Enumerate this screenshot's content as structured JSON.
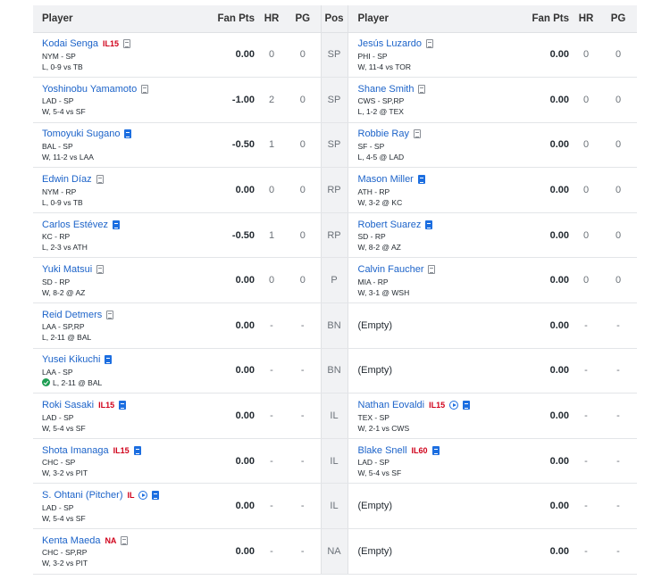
{
  "headers": {
    "player": "Player",
    "fan_pts": "Fan Pts",
    "hr": "HR",
    "pg": "PG",
    "pos": "Pos"
  },
  "rows": [
    {
      "pos": "SP",
      "left": {
        "name": "Kodai Senga",
        "status": "IL15",
        "note": "plain",
        "team": "NYM - SP",
        "game": "L, 0-9 vs TB",
        "pts": "0.00",
        "hr": "0",
        "pg": "0"
      },
      "right": {
        "name": "Jesús Luzardo",
        "note": "plain",
        "team": "PHI - SP",
        "game": "W, 11-4 vs TOR",
        "pts": "0.00",
        "hr": "0",
        "pg": "0"
      }
    },
    {
      "pos": "SP",
      "left": {
        "name": "Yoshinobu Yamamoto",
        "note": "plain",
        "team": "LAD - SP",
        "game": "W, 5-4 vs SF",
        "pts": "-1.00",
        "hr": "2",
        "pg": "0"
      },
      "right": {
        "name": "Shane Smith",
        "note": "plain",
        "team": "CWS - SP,RP",
        "game": "L, 1-2 @ TEX",
        "pts": "0.00",
        "hr": "0",
        "pg": "0"
      }
    },
    {
      "pos": "SP",
      "left": {
        "name": "Tomoyuki Sugano",
        "note": "news",
        "team": "BAL - SP",
        "game": "W, 11-2 vs LAA",
        "pts": "-0.50",
        "hr": "1",
        "pg": "0"
      },
      "right": {
        "name": "Robbie Ray",
        "note": "plain",
        "team": "SF - SP",
        "game": "L, 4-5 @ LAD",
        "pts": "0.00",
        "hr": "0",
        "pg": "0"
      }
    },
    {
      "pos": "RP",
      "left": {
        "name": "Edwin Díaz",
        "note": "plain",
        "team": "NYM - RP",
        "game": "L, 0-9 vs TB",
        "pts": "0.00",
        "hr": "0",
        "pg": "0"
      },
      "right": {
        "name": "Mason Miller",
        "note": "news",
        "team": "ATH - RP",
        "game": "W, 3-2 @ KC",
        "pts": "0.00",
        "hr": "0",
        "pg": "0"
      }
    },
    {
      "pos": "RP",
      "left": {
        "name": "Carlos Estévez",
        "note": "news",
        "team": "KC - RP",
        "game": "L, 2-3 vs ATH",
        "pts": "-0.50",
        "hr": "1",
        "pg": "0"
      },
      "right": {
        "name": "Robert Suarez",
        "note": "news",
        "team": "SD - RP",
        "game": "W, 8-2 @ AZ",
        "pts": "0.00",
        "hr": "0",
        "pg": "0"
      }
    },
    {
      "pos": "P",
      "left": {
        "name": "Yuki Matsui",
        "note": "plain",
        "team": "SD - RP",
        "game": "W, 8-2 @ AZ",
        "pts": "0.00",
        "hr": "0",
        "pg": "0"
      },
      "right": {
        "name": "Calvin Faucher",
        "note": "plain",
        "team": "MIA - RP",
        "game": "W, 3-1 @ WSH",
        "pts": "0.00",
        "hr": "0",
        "pg": "0"
      }
    },
    {
      "pos": "BN",
      "left": {
        "name": "Reid Detmers",
        "note": "plain",
        "team": "LAA - SP,RP",
        "game": "L, 2-11 @ BAL",
        "pts": "0.00",
        "hr": "-",
        "pg": "-"
      },
      "right": {
        "empty": "(Empty)",
        "pts": "0.00",
        "hr": "-",
        "pg": "-"
      }
    },
    {
      "pos": "BN",
      "left": {
        "name": "Yusei Kikuchi",
        "note": "news",
        "team": "LAA - SP",
        "game": "L, 2-11 @ BAL",
        "check": true,
        "pts": "0.00",
        "hr": "-",
        "pg": "-"
      },
      "right": {
        "empty": "(Empty)",
        "pts": "0.00",
        "hr": "-",
        "pg": "-"
      }
    },
    {
      "pos": "IL",
      "left": {
        "name": "Roki Sasaki",
        "status": "IL15",
        "note": "news",
        "team": "LAD - SP",
        "game": "W, 5-4 vs SF",
        "pts": "0.00",
        "hr": "-",
        "pg": "-"
      },
      "right": {
        "name": "Nathan Eovaldi",
        "status": "IL15",
        "play": true,
        "note": "news",
        "team": "TEX - SP",
        "game": "W, 2-1 vs CWS",
        "pts": "0.00",
        "hr": "-",
        "pg": "-"
      }
    },
    {
      "pos": "IL",
      "left": {
        "name": "Shota Imanaga",
        "status": "IL15",
        "note": "news",
        "team": "CHC - SP",
        "game": "W, 3-2 vs PIT",
        "pts": "0.00",
        "hr": "-",
        "pg": "-"
      },
      "right": {
        "name": "Blake Snell",
        "status": "IL60",
        "note": "news",
        "team": "LAD - SP",
        "game": "W, 5-4 vs SF",
        "pts": "0.00",
        "hr": "-",
        "pg": "-"
      }
    },
    {
      "pos": "IL",
      "left": {
        "name": "S. Ohtani (Pitcher)",
        "status": "IL",
        "play": true,
        "note": "news",
        "team": "LAD - SP",
        "game": "W, 5-4 vs SF",
        "pts": "0.00",
        "hr": "-",
        "pg": "-"
      },
      "right": {
        "empty": "(Empty)",
        "pts": "0.00",
        "hr": "-",
        "pg": "-"
      }
    },
    {
      "pos": "NA",
      "left": {
        "name": "Kenta Maeda",
        "status": "NA",
        "note": "plain",
        "team": "CHC - SP,RP",
        "game": "W, 3-2 vs PIT",
        "pts": "0.00",
        "hr": "-",
        "pg": "-"
      },
      "right": {
        "empty": "(Empty)",
        "pts": "0.00",
        "hr": "-",
        "pg": "-"
      }
    }
  ]
}
